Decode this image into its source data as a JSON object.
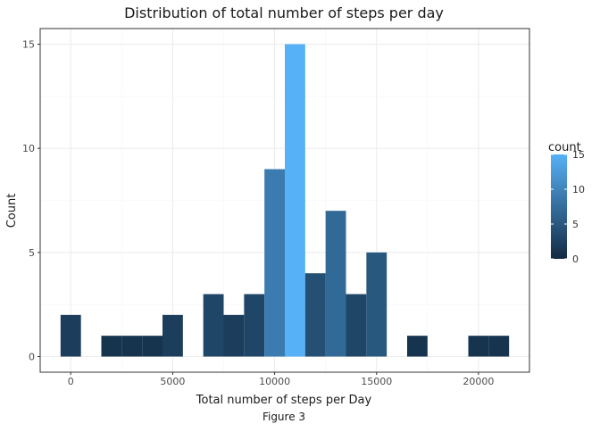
{
  "chart_data": {
    "type": "bar",
    "title": "Distribution of total number of steps per day",
    "xlabel": "Total number of steps per Day",
    "ylabel": "Count",
    "caption": "Figure 3",
    "bin_width": 1000,
    "bins": [
      {
        "x_center": 0,
        "count": 2
      },
      {
        "x_center": 1000,
        "count": 0
      },
      {
        "x_center": 2000,
        "count": 1
      },
      {
        "x_center": 3000,
        "count": 1
      },
      {
        "x_center": 4000,
        "count": 1
      },
      {
        "x_center": 5000,
        "count": 2
      },
      {
        "x_center": 6000,
        "count": 0
      },
      {
        "x_center": 7000,
        "count": 3
      },
      {
        "x_center": 8000,
        "count": 2
      },
      {
        "x_center": 9000,
        "count": 3
      },
      {
        "x_center": 10000,
        "count": 9
      },
      {
        "x_center": 11000,
        "count": 15
      },
      {
        "x_center": 12000,
        "count": 4
      },
      {
        "x_center": 13000,
        "count": 7
      },
      {
        "x_center": 14000,
        "count": 3
      },
      {
        "x_center": 15000,
        "count": 5
      },
      {
        "x_center": 16000,
        "count": 0
      },
      {
        "x_center": 17000,
        "count": 1
      },
      {
        "x_center": 18000,
        "count": 0
      },
      {
        "x_center": 19000,
        "count": 0
      },
      {
        "x_center": 20000,
        "count": 1
      },
      {
        "x_center": 21000,
        "count": 1
      }
    ],
    "xlim": [
      -1500,
      22500
    ],
    "ylim": [
      -0.75,
      15.75
    ],
    "x_ticks": [
      0,
      5000,
      10000,
      15000,
      20000
    ],
    "x_tick_labels": [
      "0",
      "5000",
      "10000",
      "15000",
      "20000"
    ],
    "y_ticks": [
      0,
      5,
      10,
      15
    ],
    "y_tick_labels": [
      "0",
      "5",
      "10",
      "15"
    ],
    "grid": true,
    "legend": {
      "title": "count",
      "position": "right",
      "ticks": [
        0,
        5,
        10,
        15
      ],
      "tick_labels": [
        "0",
        "5",
        "10",
        "15"
      ],
      "color_low": "#132B43",
      "color_high": "#56B1F7"
    }
  }
}
